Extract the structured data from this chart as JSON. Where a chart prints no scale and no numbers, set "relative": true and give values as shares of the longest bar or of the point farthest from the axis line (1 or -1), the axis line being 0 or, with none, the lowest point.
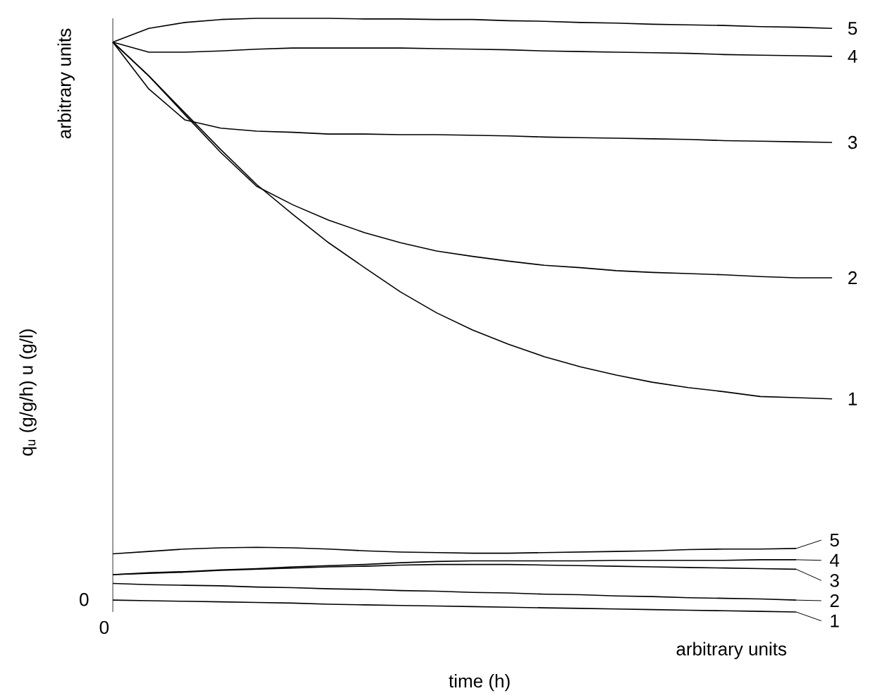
{
  "chart_data": {
    "type": "line",
    "relative": true,
    "xlabel": "time (h)",
    "ylabel": "q$_{u}$ (g/g/h)  u (g/l)",
    "marker": "none",
    "legend": "right",
    "annotations": [
      "arbitrary units",
      "0",
      "0",
      "arbitrary units"
    ],
    "categories": [
      null,
      null,
      null,
      null,
      null,
      null,
      null,
      null,
      null,
      null,
      null,
      null,
      null,
      null,
      null,
      null,
      null,
      null,
      null,
      null,
      null
    ],
    "series": [
      {
        "name": "1",
        "color": "#000000",
        "values": [
          0.96,
          0.903,
          0.841,
          0.779,
          0.72,
          0.67,
          0.622,
          0.58,
          0.539,
          0.504,
          0.475,
          0.451,
          0.43,
          0.413,
          0.399,
          0.387,
          0.378,
          0.371,
          0.363,
          0.361,
          0.359
        ]
      },
      {
        "name": "2",
        "color": "#000000",
        "values": [
          0.96,
          0.903,
          0.838,
          0.774,
          0.717,
          0.686,
          0.66,
          0.639,
          0.622,
          0.608,
          0.599,
          0.591,
          0.584,
          0.58,
          0.575,
          0.572,
          0.57,
          0.568,
          0.565,
          0.563,
          0.563
        ]
      },
      {
        "name": "3",
        "color": "#000000",
        "values": [
          0.96,
          0.881,
          0.829,
          0.815,
          0.81,
          0.808,
          0.805,
          0.805,
          0.804,
          0.804,
          0.803,
          0.802,
          0.8,
          0.799,
          0.798,
          0.797,
          0.796,
          0.794,
          0.793,
          0.792,
          0.791
        ]
      },
      {
        "name": "4",
        "color": "#000000",
        "values": [
          0.96,
          0.943,
          0.943,
          0.945,
          0.948,
          0.95,
          0.95,
          0.95,
          0.95,
          0.949,
          0.948,
          0.947,
          0.945,
          0.944,
          0.943,
          0.942,
          0.941,
          0.939,
          0.938,
          0.937,
          0.936
        ]
      },
      {
        "name": "5",
        "color": "#000000",
        "values": [
          0.96,
          0.983,
          0.993,
          0.998,
          1.0,
          1.0,
          1.0,
          0.999,
          0.999,
          0.998,
          0.998,
          0.996,
          0.995,
          0.993,
          0.992,
          0.99,
          0.989,
          0.988,
          0.986,
          0.985,
          0.983
        ]
      },
      {
        "name": "1",
        "color": "#000000",
        "values": [
          0.02,
          0.019,
          0.018,
          0.017,
          0.016,
          0.015,
          0.013,
          0.012,
          0.011,
          0.01,
          0.009,
          0.008,
          0.007,
          0.006,
          0.005,
          0.004,
          0.003,
          0.002,
          0.001,
          0.0,
          null
        ]
      },
      {
        "name": "2",
        "color": "#000000",
        "values": [
          0.048,
          0.046,
          0.045,
          0.044,
          0.042,
          0.041,
          0.039,
          0.038,
          0.036,
          0.035,
          0.033,
          0.032,
          0.03,
          0.029,
          0.027,
          0.026,
          0.024,
          0.023,
          0.022,
          0.02,
          null
        ]
      },
      {
        "name": "3",
        "color": "#000000",
        "values": [
          0.063,
          0.065,
          0.067,
          0.07,
          0.072,
          0.074,
          0.076,
          0.077,
          0.079,
          0.08,
          0.08,
          0.08,
          0.079,
          0.078,
          0.077,
          0.076,
          0.075,
          0.074,
          0.073,
          0.072,
          null
        ]
      },
      {
        "name": "4",
        "color": "#000000",
        "values": [
          0.063,
          0.066,
          0.068,
          0.071,
          0.073,
          0.076,
          0.078,
          0.08,
          0.083,
          0.085,
          0.086,
          0.086,
          0.086,
          0.086,
          0.087,
          0.087,
          0.087,
          0.087,
          0.088,
          0.088,
          null
        ]
      },
      {
        "name": "5",
        "color": "#000000",
        "values": [
          0.098,
          0.102,
          0.106,
          0.108,
          0.109,
          0.108,
          0.106,
          0.103,
          0.101,
          0.1,
          0.099,
          0.099,
          0.1,
          0.101,
          0.102,
          0.103,
          0.105,
          0.106,
          0.106,
          0.107,
          null
        ]
      }
    ]
  }
}
